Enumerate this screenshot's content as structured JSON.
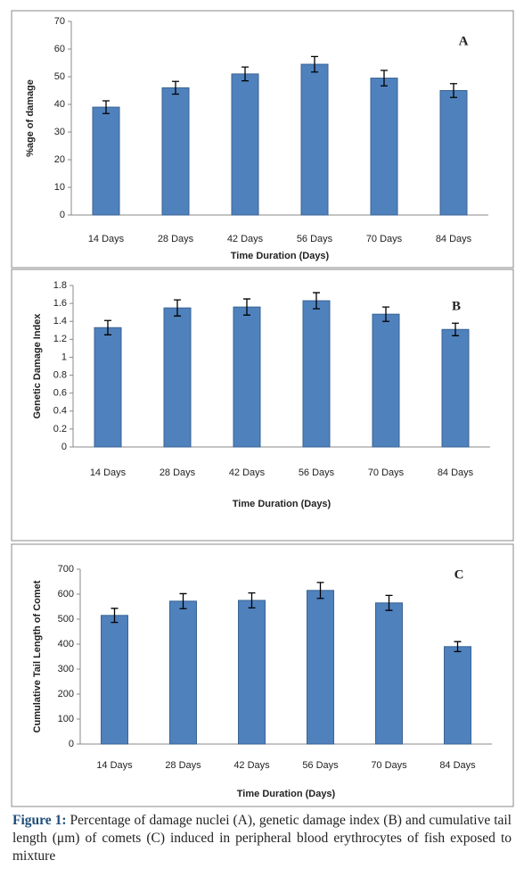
{
  "chart_data": [
    {
      "type": "bar",
      "panel_label": "A",
      "y_label": "%age of damage",
      "x_label": "Time Duration (Days)",
      "categories": [
        "14 Days",
        "28 Days",
        "42 Days",
        "56 Days",
        "70 Days",
        "84 Days"
      ],
      "values": [
        39,
        46,
        51,
        54.5,
        49.5,
        45
      ],
      "errors": [
        2.3,
        2.3,
        2.5,
        2.8,
        2.8,
        2.5
      ],
      "color": "#4f81bd",
      "ylim": [
        0,
        70
      ],
      "yticks": [
        0,
        10,
        20,
        30,
        40,
        50,
        60,
        70
      ]
    },
    {
      "type": "bar",
      "panel_label": "B",
      "y_label": "Genetic Damage Index",
      "x_label": "Time Duration (Days)",
      "categories": [
        "14 Days",
        "28 Days",
        "42 Days",
        "56 Days",
        "70 Days",
        "84 Days"
      ],
      "values": [
        1.33,
        1.55,
        1.56,
        1.63,
        1.48,
        1.31
      ],
      "errors": [
        0.08,
        0.09,
        0.09,
        0.09,
        0.08,
        0.07
      ],
      "color": "#4f81bd",
      "ylim": [
        0,
        1.8
      ],
      "yticks": [
        0,
        0.2,
        0.4,
        0.6,
        0.8,
        1,
        1.2,
        1.4,
        1.6,
        1.8
      ]
    },
    {
      "type": "bar",
      "panel_label": "C",
      "y_label": "Cumulative Tail Length of Comet",
      "x_label": "Time Duration (Days)",
      "categories": [
        "14 Days",
        "28 Days",
        "42 Days",
        "56 Days",
        "70 Days",
        "84 Days"
      ],
      "values": [
        515,
        572,
        575,
        615,
        565,
        390
      ],
      "errors": [
        28,
        30,
        30,
        32,
        30,
        20
      ],
      "color": "#4f81bd",
      "ylim": [
        0,
        700
      ],
      "yticks": [
        0,
        100,
        200,
        300,
        400,
        500,
        600,
        700
      ]
    }
  ],
  "caption": {
    "label": "Figure 1:",
    "text": "Percentage of damage nuclei (A), genetic damage index (B) and cumulative tail length (μm) of comets (C) induced in peripheral blood erythrocytes of fish exposed to mixture"
  }
}
